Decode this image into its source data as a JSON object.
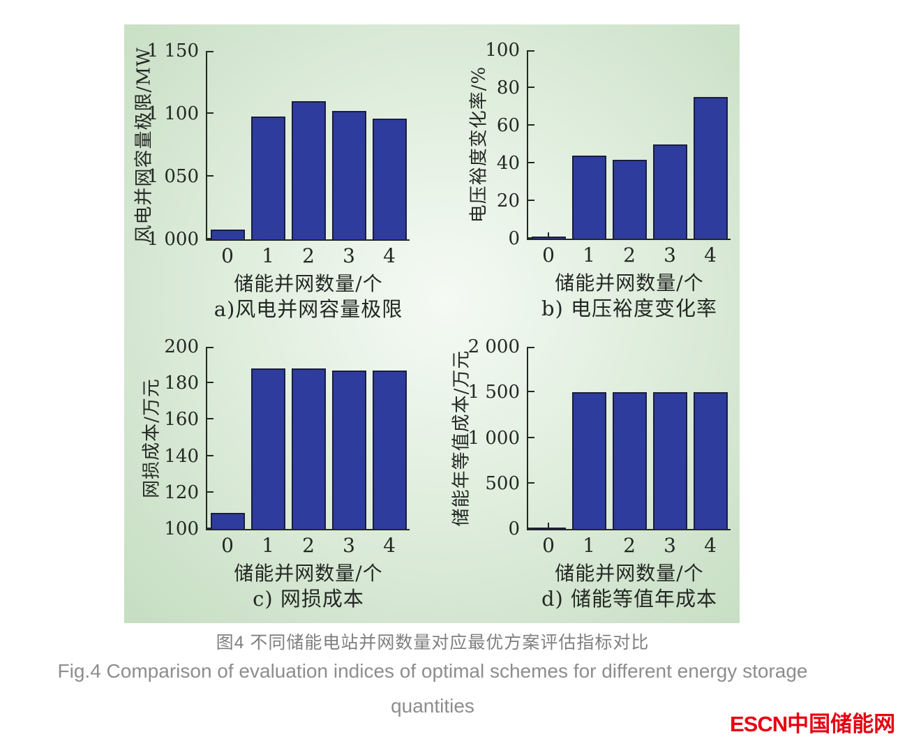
{
  "figure": {
    "caption_cn": "图4  不同储能电站并网数量对应最优方案评估指标对比",
    "caption_en_line1": "Fig.4  Comparison of evaluation indices of optimal schemes for different energy storage",
    "caption_en_line2": "quantities",
    "logo_text_en": "ESCN",
    "logo_text_cn": "中国储能网"
  },
  "colors": {
    "bar_fill": "#2e3c9e",
    "bar_stroke": "#1a1d3e",
    "axis": "#232823",
    "panel_green_edge": "#c6ddc2",
    "panel_green_center": "#f5faf4",
    "caption_gray": "#8d8d8d",
    "logo_red": "#e60012"
  },
  "chart_data": [
    {
      "type": "bar",
      "panel": "a",
      "title": "a)风电并网容量极限",
      "categories": [
        "0",
        "1",
        "2",
        "3",
        "4"
      ],
      "values": [
        1008,
        1098,
        1110,
        1102,
        1096
      ],
      "xlabel": "储能并网数量/个",
      "ylabel": "风电并网容量极限/MW",
      "ylim": [
        1000,
        1150
      ],
      "yticks": [
        1000,
        1050,
        1100,
        1150
      ],
      "ytick_labels": [
        "1 000",
        "1 050",
        "1 100",
        "1 150"
      ],
      "grid": false,
      "legend": "none"
    },
    {
      "type": "bar",
      "panel": "b",
      "title": "b) 电压裕度变化率",
      "categories": [
        "0",
        "1",
        "2",
        "3",
        "4"
      ],
      "values": [
        1,
        44,
        42,
        50,
        75
      ],
      "xlabel": "储能并网数量/个",
      "ylabel": "电压裕度变化率/%",
      "ylim": [
        0,
        100
      ],
      "yticks": [
        0,
        20,
        40,
        60,
        80,
        100
      ],
      "ytick_labels": [
        "0",
        "20",
        "40",
        "60",
        "80",
        "100"
      ],
      "grid": false,
      "legend": "none"
    },
    {
      "type": "bar",
      "panel": "c",
      "title": "c) 网损成本",
      "categories": [
        "0",
        "1",
        "2",
        "3",
        "4"
      ],
      "values": [
        109,
        188,
        188,
        187,
        187
      ],
      "xlabel": "储能并网数量/个",
      "ylabel": "网损成本/万元",
      "ylim": [
        100,
        200
      ],
      "yticks": [
        100,
        120,
        140,
        160,
        180,
        200
      ],
      "ytick_labels": [
        "100",
        "120",
        "140",
        "160",
        "180",
        "200"
      ],
      "grid": false,
      "legend": "none"
    },
    {
      "type": "bar",
      "panel": "d",
      "title": "d) 储能等值年成本",
      "categories": [
        "0",
        "1",
        "2",
        "3",
        "4"
      ],
      "values": [
        5,
        1500,
        1500,
        1500,
        1500
      ],
      "xlabel": "储能并网数量/个",
      "ylabel": "储能年等值成本/万元",
      "ylim": [
        0,
        2000
      ],
      "yticks": [
        0,
        500,
        1000,
        1500,
        2000
      ],
      "ytick_labels": [
        "0",
        "500",
        "1 000",
        "1 500",
        "2 000"
      ],
      "grid": false,
      "legend": "none"
    }
  ]
}
